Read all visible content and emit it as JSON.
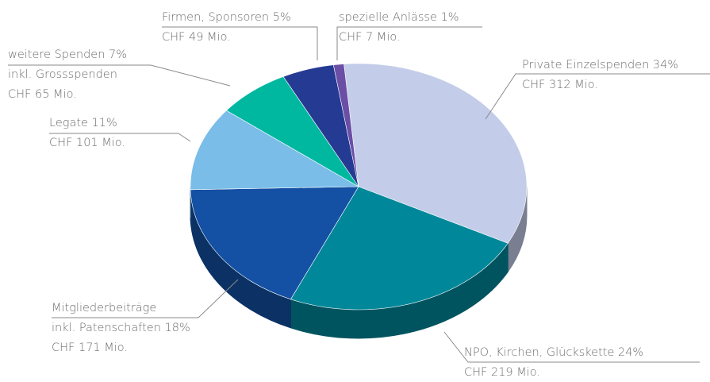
{
  "chart_data": {
    "type": "pie",
    "categories": [
      "Private Einzelspenden",
      "NPO, Kirchen, Glückskette",
      "Mitgliederbeiträge",
      "Legate",
      "weitere Spenden",
      "Firmen, Sponsoren",
      "spezielle Anlässe"
    ],
    "values": [
      34,
      24,
      18,
      11,
      7,
      5,
      1
    ],
    "colors": [
      "#c3cde9",
      "#00889a",
      "#1450a3",
      "#7abde8",
      "#00b8a0",
      "#253a93",
      "#6b4fa6"
    ],
    "label_lines": [
      [
        "Private Einzelspenden 34%",
        "CHF 312 Mio."
      ],
      [
        "NPO, Kirchen, Glückskette 24%",
        "CHF 219 Mio."
      ],
      [
        "Mitgliederbeiträge",
        "inkl. Patenschaften 18%",
        "CHF 171 Mio."
      ],
      [
        "Legate 11%",
        "CHF 101 Mio."
      ],
      [
        "weitere Spenden 7%",
        "inkl. Grossspenden",
        "CHF 65 Mio."
      ],
      [
        "Firmen, Sponsoren 5%",
        "CHF 49 Mio."
      ],
      [
        "spezielle Anlässe 1%",
        "CHF 7 Mio."
      ]
    ]
  }
}
